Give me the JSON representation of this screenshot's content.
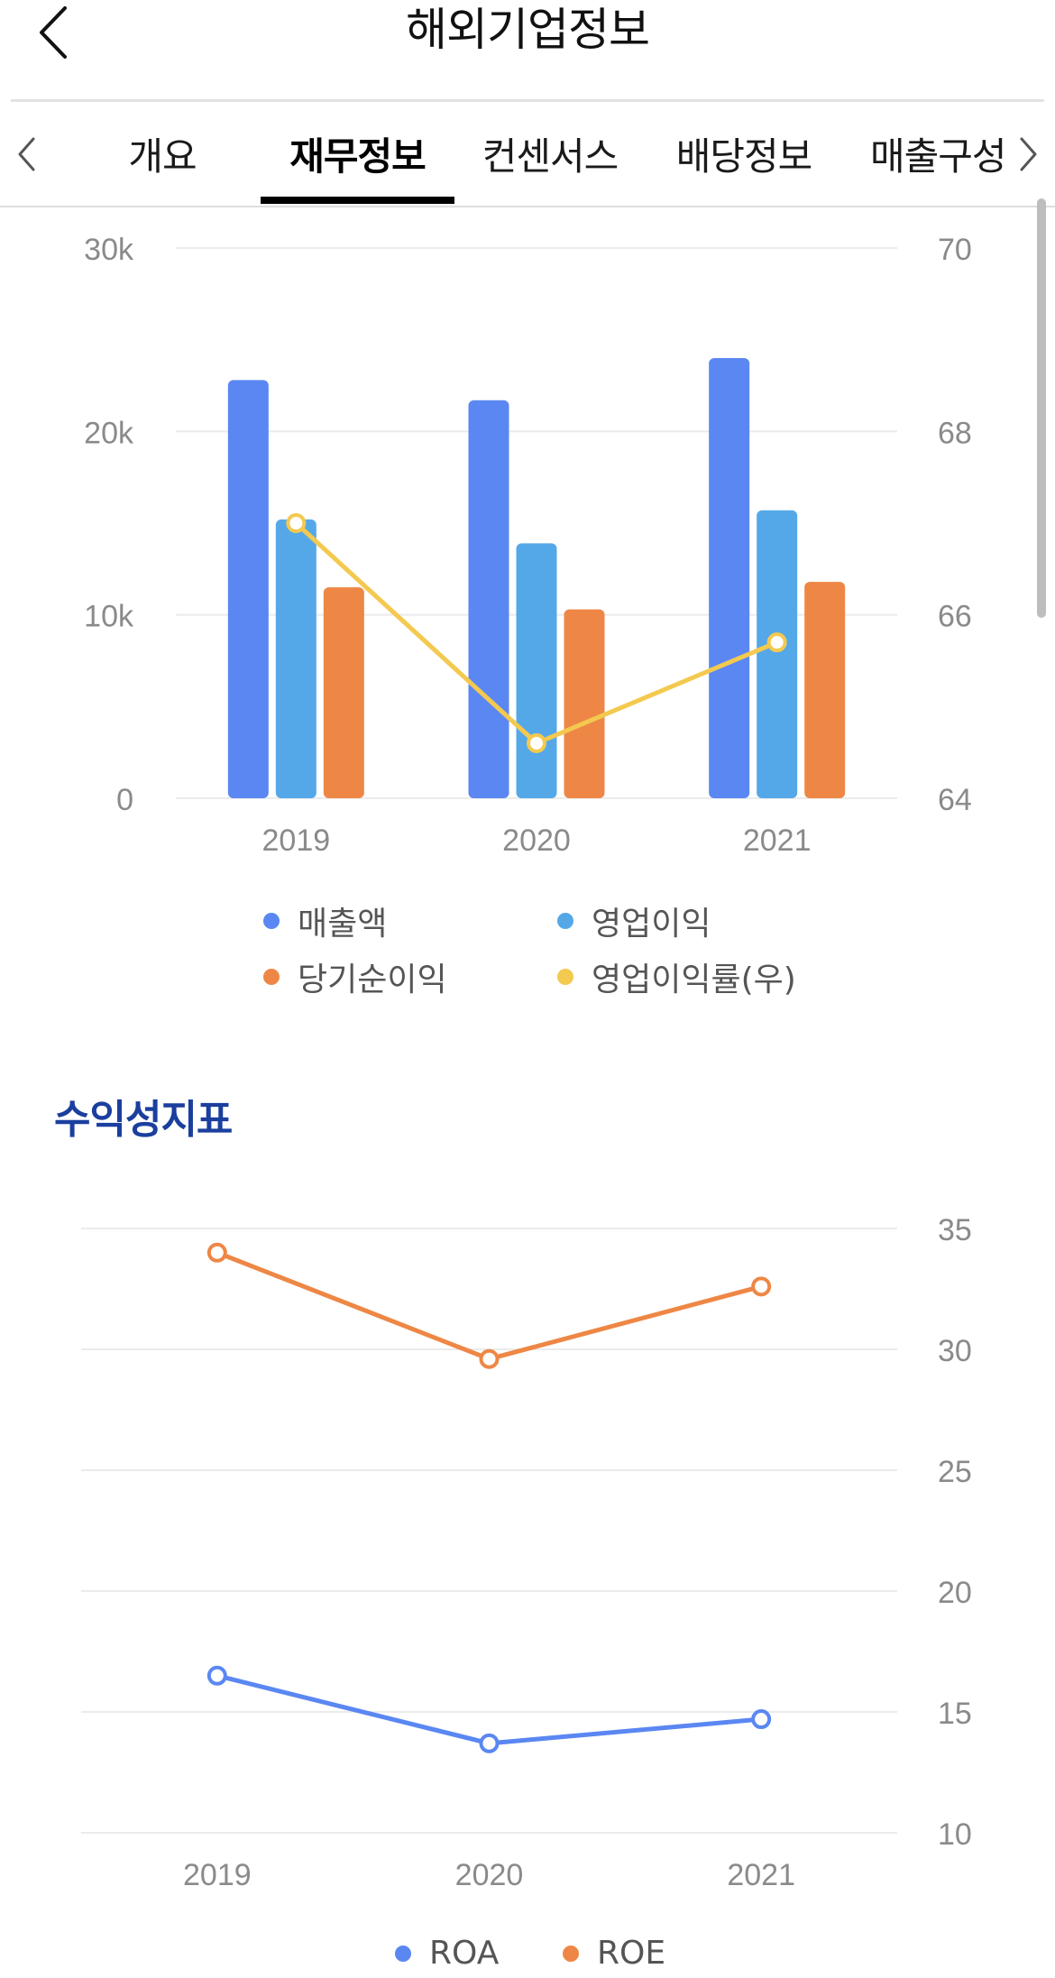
{
  "header": {
    "title": "해외기업정보",
    "back_icon": "chevron-left-icon"
  },
  "tabs": [
    {
      "label": "개요",
      "active": false
    },
    {
      "label": "재무정보",
      "active": true
    },
    {
      "label": "컨센서스",
      "active": false
    },
    {
      "label": "배당정보",
      "active": false
    },
    {
      "label": "매출구성",
      "active": false
    }
  ],
  "tab_arrows": {
    "left": "chevron-left-icon",
    "right": "chevron-right-icon"
  },
  "financial_chart": {
    "legend": [
      "매출액",
      "영업이익",
      "당기순이익",
      "영업이익률(우)"
    ]
  },
  "profitability": {
    "title": "수익성지표",
    "legend": [
      "ROA",
      "ROE"
    ]
  },
  "colors": {
    "revenue": "#5a87f2",
    "operating_profit": "#55a8e8",
    "net_income": "#ee8745",
    "op_margin": "#f3c94f",
    "roa": "#5a87f2",
    "roe": "#ee8745",
    "section_title": "#1b3f9e"
  },
  "chart_data": [
    {
      "type": "bar",
      "categories": [
        "2019",
        "2020",
        "2021"
      ],
      "series": [
        {
          "name": "매출액",
          "type": "bar",
          "axis": "left",
          "values": [
            22800,
            21700,
            24000
          ]
        },
        {
          "name": "영업이익",
          "type": "bar",
          "axis": "left",
          "values": [
            15200,
            13900,
            15700
          ]
        },
        {
          "name": "당기순이익",
          "type": "bar",
          "axis": "left",
          "values": [
            11500,
            10300,
            11800
          ]
        },
        {
          "name": "영업이익률(우)",
          "type": "line",
          "axis": "right",
          "values": [
            67.0,
            64.6,
            65.7
          ]
        }
      ],
      "ylim": [
        0,
        30000
      ],
      "y_ticks": [
        "0",
        "10k",
        "20k",
        "30k"
      ],
      "y2lim": [
        64,
        70
      ],
      "y2_ticks": [
        "64",
        "66",
        "68",
        "70"
      ],
      "grid": true,
      "legend_position": "bottom"
    },
    {
      "type": "line",
      "title": "수익성지표",
      "categories": [
        "2019",
        "2020",
        "2021"
      ],
      "series": [
        {
          "name": "ROA",
          "values": [
            16.5,
            13.7,
            14.7
          ]
        },
        {
          "name": "ROE",
          "values": [
            34.0,
            29.6,
            32.6
          ]
        }
      ],
      "axis_side": "right",
      "ylim": [
        10,
        35
      ],
      "y_ticks": [
        "10",
        "15",
        "20",
        "25",
        "30",
        "35"
      ],
      "grid": true,
      "legend_position": "bottom"
    }
  ]
}
